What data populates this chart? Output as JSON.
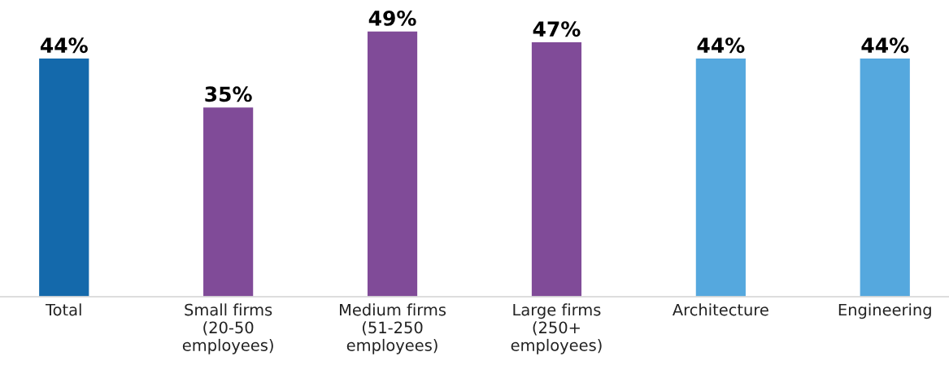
{
  "chart_data": {
    "type": "bar",
    "categories": [
      "Total",
      "Small firms\n(20-50\nemployees)",
      "Medium firms\n(51-250\nemployees)",
      "Large firms\n(250+\nemployees)",
      "Architecture",
      "Engineering"
    ],
    "values": [
      44,
      35,
      49,
      47,
      44,
      44
    ],
    "colors": [
      "#1469ab",
      "#804b98",
      "#804b98",
      "#804b98",
      "#55a8de",
      "#55a8de"
    ],
    "value_labels": [
      "44%",
      "35%",
      "49%",
      "47%",
      "44%",
      "44%"
    ],
    "grid": false
  }
}
